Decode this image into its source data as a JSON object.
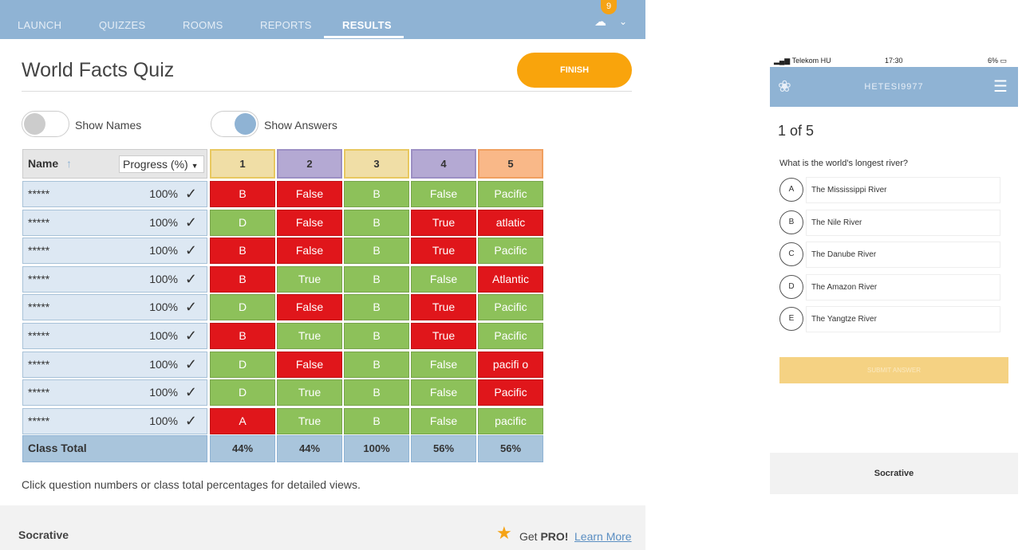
{
  "nav": {
    "tabs": [
      "LAUNCH",
      "QUIZZES",
      "ROOMS",
      "REPORTS",
      "RESULTS"
    ],
    "active": "RESULTS",
    "badge": "9"
  },
  "title": "World Facts Quiz",
  "finish_label": "FINISH",
  "toggles": {
    "show_names": "Show Names",
    "show_answers": "Show Answers",
    "show_names_on": false,
    "show_answers_on": true
  },
  "table": {
    "name_header": "Name",
    "progress_header": "Progress (%)",
    "questions": [
      {
        "label": "1",
        "color": "#f0dea6"
      },
      {
        "label": "2",
        "color": "#b4a9d3"
      },
      {
        "label": "3",
        "color": "#f0dea6"
      },
      {
        "label": "4",
        "color": "#b4a9d3"
      },
      {
        "label": "5",
        "color": "#f9b888"
      }
    ],
    "rows": [
      {
        "name": "*****",
        "progress": "100%",
        "answers": [
          [
            "B",
            "r"
          ],
          [
            "False",
            "r"
          ],
          [
            "B",
            "g"
          ],
          [
            "False",
            "g"
          ],
          [
            "Pacific",
            "g"
          ]
        ]
      },
      {
        "name": "*****",
        "progress": "100%",
        "answers": [
          [
            "D",
            "g"
          ],
          [
            "False",
            "r"
          ],
          [
            "B",
            "g"
          ],
          [
            "True",
            "r"
          ],
          [
            "atlatic",
            "r"
          ]
        ]
      },
      {
        "name": "*****",
        "progress": "100%",
        "answers": [
          [
            "B",
            "r"
          ],
          [
            "False",
            "r"
          ],
          [
            "B",
            "g"
          ],
          [
            "True",
            "r"
          ],
          [
            "Pacific",
            "g"
          ]
        ]
      },
      {
        "name": "*****",
        "progress": "100%",
        "answers": [
          [
            "B",
            "r"
          ],
          [
            "True",
            "g"
          ],
          [
            "B",
            "g"
          ],
          [
            "False",
            "g"
          ],
          [
            "Atlantic",
            "r"
          ]
        ]
      },
      {
        "name": "*****",
        "progress": "100%",
        "answers": [
          [
            "D",
            "g"
          ],
          [
            "False",
            "r"
          ],
          [
            "B",
            "g"
          ],
          [
            "True",
            "r"
          ],
          [
            "Pacific",
            "g"
          ]
        ]
      },
      {
        "name": "*****",
        "progress": "100%",
        "answers": [
          [
            "B",
            "r"
          ],
          [
            "True",
            "g"
          ],
          [
            "B",
            "g"
          ],
          [
            "True",
            "r"
          ],
          [
            "Pacific",
            "g"
          ]
        ]
      },
      {
        "name": "*****",
        "progress": "100%",
        "answers": [
          [
            "D",
            "g"
          ],
          [
            "False",
            "r"
          ],
          [
            "B",
            "g"
          ],
          [
            "False",
            "g"
          ],
          [
            "pacifi o",
            "r"
          ]
        ]
      },
      {
        "name": "*****",
        "progress": "100%",
        "answers": [
          [
            "D",
            "g"
          ],
          [
            "True",
            "g"
          ],
          [
            "B",
            "g"
          ],
          [
            "False",
            "g"
          ],
          [
            "Pacific",
            "r"
          ]
        ]
      },
      {
        "name": "*****",
        "progress": "100%",
        "answers": [
          [
            "A",
            "r"
          ],
          [
            "True",
            "g"
          ],
          [
            "B",
            "g"
          ],
          [
            "False",
            "g"
          ],
          [
            "pacific",
            "g"
          ]
        ]
      }
    ],
    "total_label": "Class Total",
    "totals": [
      "44%",
      "44%",
      "100%",
      "56%",
      "56%"
    ]
  },
  "note": "Click question numbers or class total percentages for detailed views.",
  "footer": {
    "brand": "Socrative",
    "get": "Get ",
    "pro": "PRO!",
    "learn_more": "Learn More"
  },
  "phone": {
    "carrier": "Telekom HU",
    "time": "17:30",
    "battery": "6%",
    "room": "HETESI9977",
    "count": "1 of 5",
    "question": "What is the world's longest river?",
    "options": [
      {
        "letter": "A",
        "text": "The Mississippi River"
      },
      {
        "letter": "B",
        "text": "The Nile River"
      },
      {
        "letter": "C",
        "text": "The Danube River"
      },
      {
        "letter": "D",
        "text": "The Amazon River"
      },
      {
        "letter": "E",
        "text": "The Yangtze River"
      }
    ],
    "submit": "SUBMIT ANSWER",
    "footer": "Socrative"
  }
}
